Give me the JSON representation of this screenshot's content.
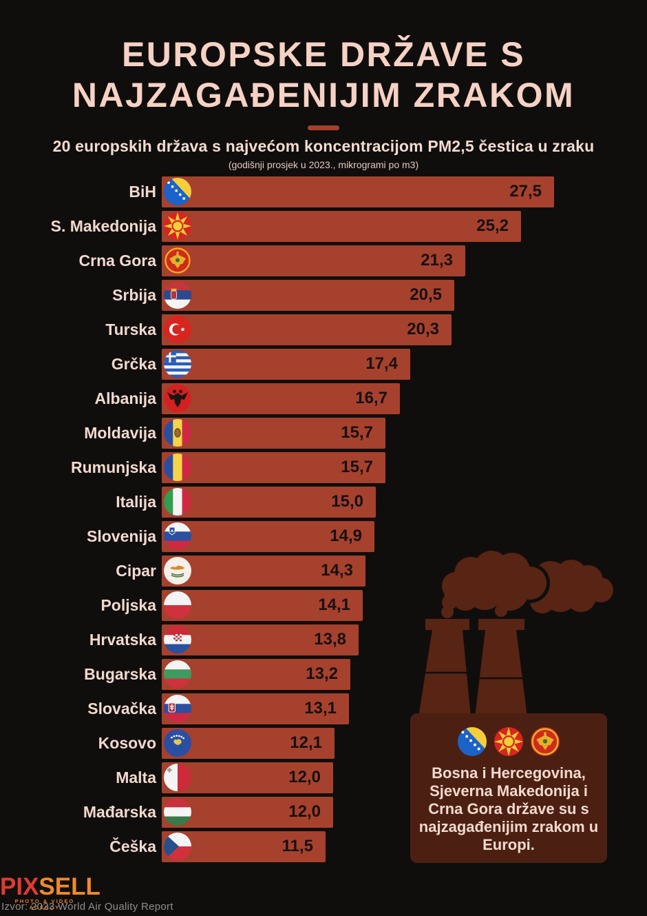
{
  "header": {
    "title_line1": "EUROPSKE DRŽAVE S",
    "title_line2": "NAJZAGAĐENIJIM ZRAKOM",
    "subtitle": "20 europskih država s najvećom koncentracijom PM2,5 čestica u zraku",
    "subnote": "(godišnji prosjek u 2023., mikrogrami po m3)"
  },
  "chart_data": {
    "type": "bar",
    "orientation": "horizontal",
    "title": "Europske države s najzagađenijim zrakom",
    "subtitle": "20 europskih država s najvećom koncentracijom PM2,5 čestica u zraku",
    "note": "godišnji prosjek u 2023., mikrogrami po m3",
    "unit": "µg/m3",
    "xlim": [
      0,
      27.5
    ],
    "grid": false,
    "legend": false,
    "categories": [
      "BiH",
      "S. Makedonija",
      "Crna Gora",
      "Srbija",
      "Turska",
      "Grčka",
      "Albanija",
      "Moldavija",
      "Rumunjska",
      "Italija",
      "Slovenija",
      "Cipar",
      "Poljska",
      "Hrvatska",
      "Bugarska",
      "Slovačka",
      "Kosovo",
      "Malta",
      "Mađarska",
      "Češka"
    ],
    "values": [
      27.5,
      25.2,
      21.3,
      20.5,
      20.3,
      17.4,
      16.7,
      15.7,
      15.7,
      15.0,
      14.9,
      14.3,
      14.1,
      13.8,
      13.2,
      13.1,
      12.1,
      12.0,
      12.0,
      11.5
    ],
    "value_labels": [
      "27,5",
      "25,2",
      "21,3",
      "20,5",
      "20,3",
      "17,4",
      "16,7",
      "15,7",
      "15,7",
      "15,0",
      "14,9",
      "14,3",
      "14,1",
      "13,8",
      "13,2",
      "13,1",
      "12,1",
      "12,0",
      "12,0",
      "11,5"
    ],
    "flag_codes": [
      "bih",
      "mkd",
      "mne",
      "srb",
      "tur",
      "grc",
      "alb",
      "mda",
      "rou",
      "ita",
      "svn",
      "cyp",
      "pol",
      "hrv",
      "bgr",
      "svk",
      "kos",
      "mlt",
      "hun",
      "cze"
    ]
  },
  "callout": {
    "flag_codes": [
      "bih",
      "mkd",
      "mne"
    ],
    "text": "Bosna i Hercegovina, Sjeverna Makedonija i Crna Gora države su s najzagađenijim zrakom u Europi."
  },
  "footer": {
    "logo_part1": "PIX",
    "logo_part2": "SELL",
    "logo_tagline": "PHOTO & VIDEO AGENCY",
    "source": "Izvor: 2023 World Air Quality Report"
  },
  "colors": {
    "background": "#100e0d",
    "bar": "#a6412d",
    "bar_value_text": "#171010",
    "label_text": "#f2d9ce",
    "title_text": "#f6d2c4",
    "divider": "#a6402c",
    "factory_illustration": "#582414",
    "callout_background": "#4b2012",
    "logo_red": "#df3b30",
    "logo_orange": "#f08a2a",
    "source_text": "#8f8f8f"
  }
}
